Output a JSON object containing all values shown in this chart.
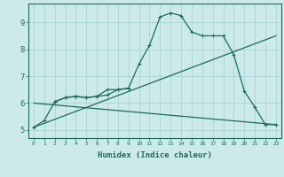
{
  "title": "",
  "xlabel": "Humidex (Indice chaleur)",
  "bg_color": "#cceaea",
  "grid_color": "#aad4d4",
  "line_color": "#1a6b5a",
  "xlim": [
    -0.5,
    23.5
  ],
  "ylim": [
    4.7,
    9.7
  ],
  "xticks": [
    0,
    1,
    2,
    3,
    4,
    5,
    6,
    7,
    8,
    9,
    10,
    11,
    12,
    13,
    14,
    15,
    16,
    17,
    18,
    19,
    20,
    21,
    22,
    23
  ],
  "yticks": [
    5,
    6,
    7,
    8,
    9
  ],
  "line1_x": [
    0,
    1,
    2,
    3,
    4,
    5,
    6,
    7,
    8,
    9,
    10,
    11,
    12,
    13,
    14,
    15,
    16,
    17,
    18,
    19,
    20,
    21,
    22,
    23
  ],
  "line1_y": [
    5.1,
    5.35,
    6.05,
    6.2,
    6.25,
    6.2,
    6.25,
    6.5,
    6.5,
    6.55,
    7.45,
    8.15,
    9.2,
    9.35,
    9.25,
    8.65,
    8.5,
    8.5,
    8.5,
    7.8,
    6.45,
    5.85,
    5.2,
    5.2
  ],
  "line3_x": [
    0,
    23
  ],
  "line3_y": [
    5.1,
    8.5
  ],
  "line4_x": [
    0,
    23
  ],
  "line4_y": [
    6.0,
    5.2
  ],
  "line5_x": [
    2,
    3,
    4,
    5,
    6,
    7,
    8,
    9
  ],
  "line5_y": [
    6.05,
    6.2,
    6.25,
    6.2,
    6.25,
    6.3,
    6.5,
    6.55
  ]
}
